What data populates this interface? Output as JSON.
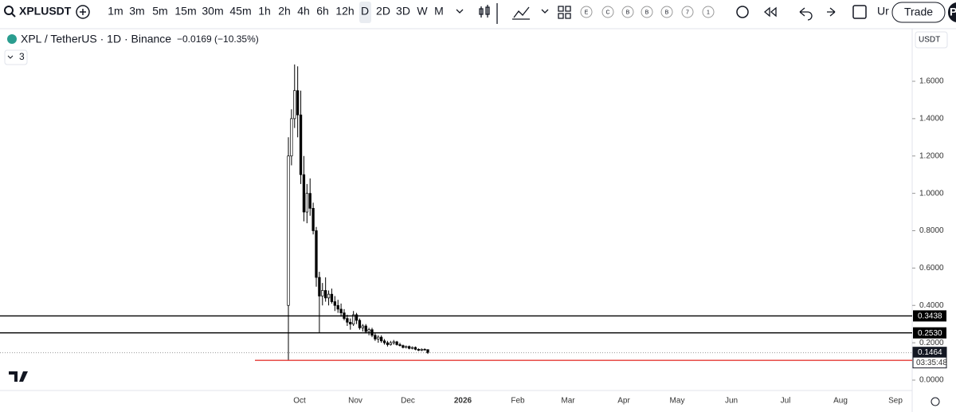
{
  "toolbar": {
    "symbol": "XPLUSDT",
    "intervals": [
      "1m",
      "3m",
      "5m",
      "15m",
      "30m",
      "45m",
      "1h",
      "2h",
      "4h",
      "6h",
      "12h",
      "D",
      "2D",
      "3D",
      "W",
      "M"
    ],
    "icon_letters": [
      "E",
      "C",
      "B",
      "B",
      "B",
      "7",
      "1"
    ],
    "clipped_text": "Ur",
    "trade_button": "Trade",
    "clipped_button": "Pu"
  },
  "legend": {
    "title": "XPL / TetherUS · 1D · Binance",
    "change": "−0.0169 (−10.35%)",
    "indicators": "3"
  },
  "chart_data": {
    "type": "candlestick",
    "currency": "USDT",
    "series": [
      {
        "name": "XPLUSDT",
        "color": "#000000",
        "open": [
          0.4,
          1.2,
          1.4,
          1.55,
          1.42,
          1.1,
          0.9,
          1.0,
          0.92,
          0.8,
          0.55,
          0.45,
          0.48,
          0.44,
          0.46,
          0.42,
          0.4,
          0.38,
          0.36,
          0.33,
          0.31,
          0.3,
          0.35,
          0.32,
          0.28,
          0.29,
          0.26,
          0.27,
          0.24,
          0.22,
          0.23,
          0.21,
          0.2,
          0.19,
          0.2,
          0.205,
          0.19,
          0.185,
          0.175,
          0.18,
          0.17,
          0.175,
          0.165,
          0.16,
          0.165,
          0.1633
        ],
        "high": [
          1.3,
          1.45,
          1.69,
          1.68,
          1.55,
          1.2,
          1.05,
          1.08,
          0.95,
          0.82,
          0.58,
          0.52,
          0.55,
          0.48,
          0.49,
          0.45,
          0.43,
          0.41,
          0.38,
          0.35,
          0.33,
          0.37,
          0.36,
          0.33,
          0.3,
          0.3,
          0.28,
          0.28,
          0.25,
          0.24,
          0.24,
          0.22,
          0.21,
          0.21,
          0.215,
          0.21,
          0.2,
          0.19,
          0.185,
          0.185,
          0.18,
          0.18,
          0.17,
          0.17,
          0.17,
          0.165
        ],
        "low": [
          0.1058,
          1.15,
          1.35,
          1.3,
          1.05,
          0.85,
          0.84,
          0.88,
          0.78,
          0.5,
          0.253,
          0.4,
          0.42,
          0.4,
          0.41,
          0.37,
          0.36,
          0.34,
          0.32,
          0.29,
          0.27,
          0.29,
          0.3,
          0.27,
          0.26,
          0.25,
          0.24,
          0.23,
          0.21,
          0.2,
          0.2,
          0.19,
          0.18,
          0.185,
          0.19,
          0.185,
          0.18,
          0.17,
          0.17,
          0.165,
          0.165,
          0.16,
          0.155,
          0.155,
          0.16,
          0.14
        ],
        "close": [
          1.2,
          1.4,
          1.55,
          1.42,
          1.1,
          0.9,
          1.0,
          0.92,
          0.8,
          0.55,
          0.45,
          0.48,
          0.44,
          0.46,
          0.42,
          0.4,
          0.38,
          0.36,
          0.33,
          0.31,
          0.3,
          0.35,
          0.32,
          0.28,
          0.29,
          0.26,
          0.27,
          0.24,
          0.22,
          0.23,
          0.21,
          0.2,
          0.19,
          0.2,
          0.205,
          0.19,
          0.185,
          0.175,
          0.18,
          0.17,
          0.175,
          0.165,
          0.16,
          0.165,
          0.1633,
          0.1464
        ]
      }
    ],
    "ylim": [
      -0.0555,
      1.8816
    ],
    "yticks": [
      {
        "value": 0,
        "label": "0.0000"
      },
      {
        "value": 0.2,
        "label": "0.2000"
      },
      {
        "value": 0.4,
        "label": "0.4000"
      },
      {
        "value": 0.6,
        "label": "0.6000"
      },
      {
        "value": 0.8,
        "label": "0.8000"
      },
      {
        "value": 1,
        "label": "1.0000"
      },
      {
        "value": 1.2,
        "label": "1.2000"
      },
      {
        "value": 1.4,
        "label": "1.4000"
      },
      {
        "value": 1.6,
        "label": "1.6000"
      }
    ],
    "xlabels": [
      "Oct",
      "Nov",
      "Dec",
      "2026",
      "Feb",
      "Mar",
      "Apr",
      "May",
      "Jun",
      "Jul",
      "Aug",
      "Sep"
    ],
    "levels": [
      {
        "value": 0.3438,
        "color": "#000000"
      },
      {
        "value": 0.253,
        "label": "0.2530",
        "color": "#000000"
      },
      {
        "value": 0.1058,
        "color": "#e53935"
      }
    ],
    "last_price": 0.1464,
    "countdown": "03:35:48"
  }
}
